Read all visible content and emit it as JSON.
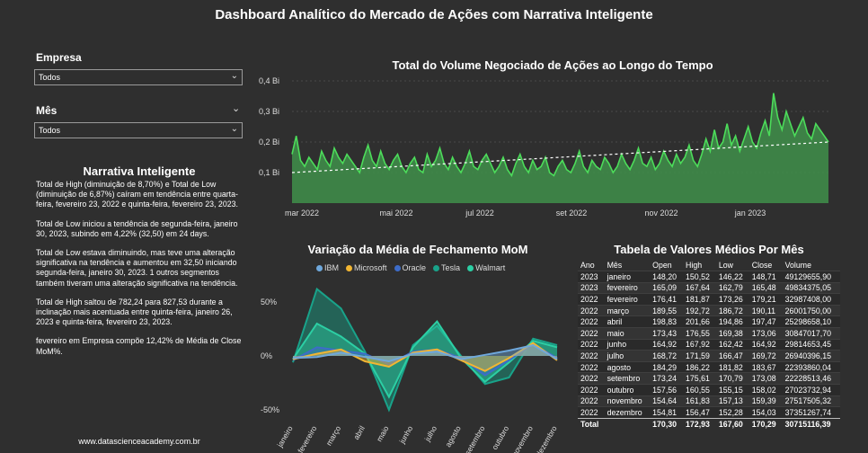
{
  "title": "Dashboard Analítico do Mercado de Ações com Narrativa Inteligente",
  "slicers": {
    "empresa": {
      "label": "Empresa",
      "value": "Todos"
    },
    "mes": {
      "label": "Mês",
      "value": "Todos"
    }
  },
  "narrative": {
    "title": "Narrativa Inteligente",
    "p1": "Total de High (diminuição de 8,70%) e Total de Low (diminuição de 6,87%) caíram em tendência entre quarta-feira, fevereiro 23, 2022 e quinta-feira, fevereiro 23, 2023.",
    "p2": "Total de Low iniciou a tendência de segunda-feira, janeiro 30, 2023, subindo em 4,22% (32,50) em 24 days.",
    "p3": "Total de Low estava diminuindo, mas teve uma alteração significativa na tendência e aumentou em 32,50 iniciando segunda-feira, janeiro 30, 2023. 1 outros segmentos também tiveram uma alteração significativa na tendência.",
    "p4": "Total de High saltou de 782,24 para 827,53 durante a inclinação mais acentuada entre quinta-feira, janeiro 26, 2023 e quinta-feira, fevereiro 23, 2023.",
    "p5": "fevereiro em Empresa  compõe 12,42% de Média de Close MoM%."
  },
  "footer": "www.datascienceacademy.com.br",
  "volume_chart": {
    "title": "Total do Volume Negociado de Ações ao Longo do Tempo",
    "colors": {
      "area": "#3f8f4a",
      "line": "#4cdc5a",
      "trend": "#ffffff"
    },
    "chart_data": {
      "type": "area",
      "y_ticks": [
        "0,4 Bi",
        "0,3 Bi",
        "0,2 Bi",
        "0,1 Bi"
      ],
      "x_ticks": [
        "mar 2022",
        "mai 2022",
        "jul 2022",
        "set 2022",
        "nov 2022",
        "jan 2023"
      ],
      "ylim_bi": [
        0,
        0.4
      ],
      "series_bi": [
        0.16,
        0.22,
        0.14,
        0.12,
        0.15,
        0.13,
        0.11,
        0.17,
        0.14,
        0.12,
        0.18,
        0.15,
        0.13,
        0.16,
        0.14,
        0.12,
        0.1,
        0.15,
        0.19,
        0.14,
        0.12,
        0.17,
        0.13,
        0.11,
        0.14,
        0.16,
        0.12,
        0.1,
        0.13,
        0.15,
        0.11,
        0.1,
        0.16,
        0.12,
        0.14,
        0.18,
        0.13,
        0.11,
        0.15,
        0.12,
        0.1,
        0.13,
        0.17,
        0.12,
        0.11,
        0.14,
        0.16,
        0.13,
        0.1,
        0.12,
        0.15,
        0.11,
        0.09,
        0.13,
        0.16,
        0.12,
        0.1,
        0.14,
        0.11,
        0.12,
        0.15,
        0.1,
        0.09,
        0.12,
        0.14,
        0.11,
        0.1,
        0.13,
        0.17,
        0.12,
        0.1,
        0.14,
        0.12,
        0.11,
        0.15,
        0.13,
        0.1,
        0.12,
        0.16,
        0.13,
        0.11,
        0.14,
        0.18,
        0.13,
        0.12,
        0.15,
        0.11,
        0.13,
        0.17,
        0.14,
        0.12,
        0.16,
        0.13,
        0.15,
        0.19,
        0.14,
        0.12,
        0.16,
        0.21,
        0.17,
        0.24,
        0.18,
        0.2,
        0.26,
        0.19,
        0.22,
        0.17,
        0.21,
        0.25,
        0.2,
        0.18,
        0.23,
        0.27,
        0.22,
        0.36,
        0.28,
        0.24,
        0.3,
        0.26,
        0.22,
        0.25,
        0.28,
        0.23,
        0.21,
        0.26,
        0.24,
        0.22,
        0.2
      ],
      "trend_bi": [
        0.1,
        0.2
      ]
    }
  },
  "mom_chart": {
    "title": "Variação da Média de Fechamento MoM",
    "chart_data": {
      "type": "area",
      "categories": [
        "janeiro",
        "fevereiro",
        "março",
        "abril",
        "maio",
        "junho",
        "julho",
        "agosto",
        "setembro",
        "outubro",
        "novembro",
        "dezembro"
      ],
      "y_ticks": [
        "50%",
        "0%",
        "-50%"
      ],
      "ylim": [
        -60,
        60
      ],
      "series": [
        {
          "name": "IBM",
          "color": "#6fa8dc",
          "values": [
            -2,
            -1,
            3,
            -1,
            -5,
            2,
            4,
            -3,
            1,
            5,
            10,
            -3
          ]
        },
        {
          "name": "Microsoft",
          "color": "#f2b632",
          "values": [
            -3,
            2,
            6,
            -5,
            -10,
            3,
            6,
            -4,
            -14,
            -2,
            12,
            -4
          ]
        },
        {
          "name": "Oracle",
          "color": "#3d6cc9",
          "values": [
            -4,
            8,
            5,
            2,
            -8,
            4,
            6,
            -2,
            -18,
            -4,
            11,
            -2
          ]
        },
        {
          "name": "Tesla",
          "color": "#19a38a",
          "values": [
            -6,
            62,
            44,
            4,
            -50,
            10,
            28,
            0,
            -26,
            -20,
            16,
            10
          ]
        },
        {
          "name": "Walmart",
          "color": "#2ccfa4",
          "values": [
            -3,
            30,
            18,
            2,
            -38,
            8,
            32,
            -2,
            -24,
            -6,
            14,
            8
          ]
        }
      ]
    }
  },
  "table": {
    "title": "Tabela de Valores Médios Por Mês",
    "headers": [
      "Ano",
      "Mês",
      "Open",
      "High",
      "Low",
      "Close",
      "Volume"
    ],
    "rows": [
      [
        "2023",
        "janeiro",
        "148,20",
        "150,52",
        "146,22",
        "148,71",
        "49129655,90"
      ],
      [
        "2023",
        "fevereiro",
        "165,09",
        "167,64",
        "162,79",
        "165,48",
        "49834375,05"
      ],
      [
        "2022",
        "fevereiro",
        "176,41",
        "181,87",
        "173,26",
        "179,21",
        "32987408,00"
      ],
      [
        "2022",
        "março",
        "189,55",
        "192,72",
        "186,72",
        "190,11",
        "26001750,00"
      ],
      [
        "2022",
        "abril",
        "198,83",
        "201,66",
        "194,86",
        "197,47",
        "25298658,10"
      ],
      [
        "2022",
        "maio",
        "173,43",
        "176,55",
        "169,38",
        "173,06",
        "30847017,70"
      ],
      [
        "2022",
        "junho",
        "164,92",
        "167,92",
        "162,42",
        "164,92",
        "29814653,45"
      ],
      [
        "2022",
        "julho",
        "168,72",
        "171,59",
        "166,47",
        "169,72",
        "26940396,15"
      ],
      [
        "2022",
        "agosto",
        "184,29",
        "186,22",
        "181,82",
        "183,67",
        "22393860,04"
      ],
      [
        "2022",
        "setembro",
        "173,24",
        "175,61",
        "170,79",
        "173,08",
        "22228513,46"
      ],
      [
        "2022",
        "outubro",
        "157,56",
        "160,55",
        "155,15",
        "158,02",
        "27023732,94"
      ],
      [
        "2022",
        "novembro",
        "154,64",
        "161,83",
        "157,13",
        "159,39",
        "27517505,32"
      ],
      [
        "2022",
        "dezembro",
        "154,81",
        "156,47",
        "152,28",
        "154,03",
        "37351267,74"
      ]
    ],
    "total": [
      "Total",
      "",
      "170,30",
      "172,93",
      "167,60",
      "170,29",
      "30715116,39"
    ]
  }
}
